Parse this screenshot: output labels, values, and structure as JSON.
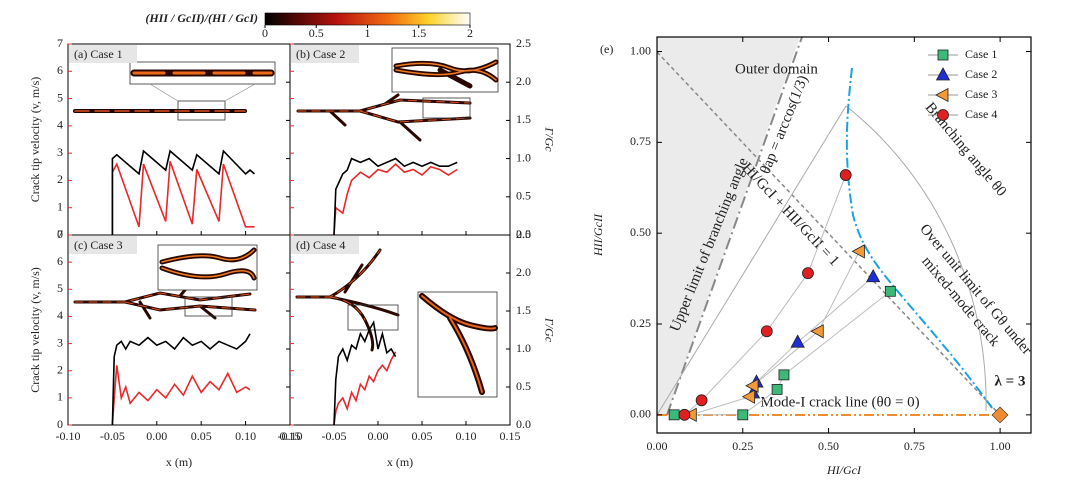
{
  "colorbar": {
    "label": "(HII / GcII)/(HI / GcI)",
    "lim": [
      0,
      2
    ],
    "ticks": [
      0,
      0.5,
      1,
      1.5,
      2
    ]
  },
  "chart_data": [
    {
      "type": "line",
      "label": "(a) Case 1",
      "ylabel": "Crack tip velocity (v, m/s)",
      "xlim": [
        -0.1,
        0.15
      ],
      "xticks": [
        -0.1,
        -0.05,
        0,
        0.05,
        0.1,
        0.15
      ],
      "ylim": [
        0,
        7
      ],
      "yticks": [
        0,
        1,
        2,
        3,
        4,
        5,
        6,
        7
      ],
      "y2lim": [
        0,
        2.5
      ],
      "y2ticks": [
        0,
        0.5,
        1,
        1.5,
        2,
        2.5
      ],
      "x": [
        -0.05,
        -0.05,
        -0.045,
        -0.02,
        -0.015,
        0.01,
        0.015,
        0.04,
        0.045,
        0.07,
        0.075,
        0.1,
        0.105,
        0.11
      ],
      "series": [
        {
          "color": "#e8282a",
          "axis": "y",
          "values": [
            0,
            2.3,
            2.6,
            0.3,
            2.6,
            0.5,
            2.7,
            0.4,
            2.4,
            0.5,
            2.6,
            0.3,
            0.3,
            0.3
          ]
        },
        {
          "color": "#000000",
          "axis": "y2",
          "values": [
            0,
            1.0,
            1.05,
            0.8,
            1.1,
            0.85,
            1.1,
            0.85,
            1.05,
            0.8,
            1.1,
            0.8,
            0.85,
            0.8
          ]
        }
      ]
    },
    {
      "type": "line",
      "label": "(b) Case 2",
      "y2label": "Γ/Gc",
      "xlim": [
        -0.1,
        0.15
      ],
      "xticks": [
        -0.1,
        -0.05,
        0,
        0.05,
        0.1,
        0.15
      ],
      "ylim": [
        0,
        7
      ],
      "yticks": [
        0,
        1,
        2,
        3,
        4,
        5,
        6,
        7
      ],
      "y2lim": [
        0,
        2.5
      ],
      "y2ticks": [
        {
          "value": 0,
          "label": "0.0"
        },
        0.5,
        {
          "value": 1,
          "label": "1.0"
        },
        1.5,
        {
          "value": 2,
          "label": "2.0"
        },
        2.5
      ],
      "x": [
        -0.05,
        -0.048,
        -0.04,
        -0.035,
        -0.03,
        -0.02,
        -0.01,
        0,
        0.01,
        0.02,
        0.03,
        0.04,
        0.05,
        0.06,
        0.07,
        0.08,
        0.09
      ],
      "series": [
        {
          "color": "#e8282a",
          "axis": "y",
          "values": [
            0,
            1.0,
            0.8,
            1.5,
            2.0,
            2.3,
            2.1,
            2.4,
            2.3,
            2.6,
            2.3,
            2.4,
            2.2,
            2.5,
            2.4,
            2.2,
            2.4
          ]
        },
        {
          "color": "#000000",
          "axis": "y2",
          "values": [
            0,
            0.6,
            0.8,
            0.85,
            1.0,
            0.95,
            1.0,
            0.9,
            0.95,
            1.0,
            0.9,
            0.95,
            0.9,
            0.95,
            0.9,
            0.9,
            0.95
          ]
        }
      ]
    },
    {
      "type": "line",
      "label": "(c) Case 3",
      "ylabel": "Crack tip velocity (v, m/s)",
      "xlabel": "x (m)",
      "xlim": [
        -0.1,
        0.15
      ],
      "xticks": [
        {
          "value": -0.1,
          "label": "-0.10"
        },
        {
          "value": -0.05,
          "label": "-0.05"
        },
        {
          "value": 0,
          "label": "0.00"
        },
        {
          "value": 0.05,
          "label": "0.05"
        },
        {
          "value": 0.1,
          "label": "0.10"
        },
        {
          "value": 0.15,
          "label": "0.15"
        }
      ],
      "ylim": [
        0,
        7
      ],
      "yticks": [
        0,
        1,
        2,
        3,
        4,
        5,
        6,
        7
      ],
      "y2lim": [
        0,
        2.5
      ],
      "y2ticks": [
        0,
        0.5,
        1,
        1.5,
        2,
        2.5
      ],
      "x": [
        -0.05,
        -0.048,
        -0.045,
        -0.04,
        -0.035,
        -0.03,
        -0.02,
        -0.01,
        0,
        0.01,
        0.02,
        0.03,
        0.04,
        0.05,
        0.06,
        0.07,
        0.08,
        0.09,
        0.1,
        0.105
      ],
      "series": [
        {
          "color": "#e8282a",
          "axis": "y",
          "values": [
            0,
            1.0,
            2.2,
            1.0,
            1.4,
            0.8,
            1.2,
            0.9,
            1.3,
            1.0,
            1.5,
            1.1,
            1.8,
            1.2,
            1.6,
            1.3,
            1.9,
            1.2,
            1.4,
            1.3
          ]
        },
        {
          "color": "#000000",
          "axis": "y2",
          "values": [
            0,
            0.9,
            1.05,
            1.1,
            1.0,
            1.1,
            1.05,
            1.15,
            1.05,
            1.1,
            1.0,
            1.15,
            1.05,
            1.1,
            1.0,
            1.1,
            1.05,
            1.0,
            1.1,
            1.2
          ]
        }
      ]
    },
    {
      "type": "line",
      "label": "(d) Case 4",
      "y2label": "Γ/Gc",
      "xlabel": "x (m)",
      "xlim": [
        -0.1,
        0.15
      ],
      "xticks": [
        {
          "value": -0.1,
          "label": "-0.10"
        },
        {
          "value": -0.05,
          "label": "-0.05"
        },
        {
          "value": 0,
          "label": "0.00"
        },
        {
          "value": 0.05,
          "label": "0.05"
        },
        {
          "value": 0.1,
          "label": "0.10"
        },
        {
          "value": 0.15,
          "label": "0.15"
        }
      ],
      "ylim": [
        0,
        7
      ],
      "yticks": [
        0,
        1,
        2,
        3,
        4,
        5,
        6,
        7
      ],
      "y2lim": [
        0,
        2.5
      ],
      "y2ticks": [
        {
          "value": 0,
          "label": "0.0"
        },
        0.5,
        {
          "value": 1,
          "label": "1.0"
        },
        1.5,
        {
          "value": 2,
          "label": "2.0"
        },
        2.5
      ],
      "x": [
        -0.05,
        -0.048,
        -0.045,
        -0.04,
        -0.035,
        -0.03,
        -0.025,
        -0.02,
        -0.015,
        -0.01,
        -0.005,
        0,
        0.005,
        0.01,
        0.015,
        0.02
      ],
      "series": [
        {
          "color": "#e8282a",
          "axis": "y",
          "values": [
            0,
            0.5,
            0.8,
            1.0,
            0.6,
            1.2,
            0.9,
            1.5,
            1.3,
            1.8,
            1.6,
            2.0,
            2.2,
            2.0,
            2.4,
            2.7
          ]
        },
        {
          "color": "#000000",
          "axis": "y2",
          "values": [
            0,
            0.6,
            0.9,
            1.0,
            0.85,
            1.05,
            1.0,
            1.2,
            1.1,
            1.25,
            1.35,
            1.0,
            1.2,
            0.95,
            1.0,
            0.9
          ]
        }
      ]
    },
    {
      "type": "scatter",
      "label": "(e)",
      "xlabel": "HI/GcI",
      "ylabel": "HII/GcII",
      "xlim": [
        0,
        1.09
      ],
      "ylim": [
        -0.05,
        1.04
      ],
      "xticks": [
        {
          "value": 0,
          "label": "0.00"
        },
        {
          "value": 0.25,
          "label": "0.25"
        },
        {
          "value": 0.5,
          "label": "0.50"
        },
        {
          "value": 0.75,
          "label": "0.75"
        },
        {
          "value": 1,
          "label": "1.00"
        }
      ],
      "yticks": [
        {
          "value": 0,
          "label": "0.00"
        },
        {
          "value": 0.25,
          "label": "0.25"
        },
        {
          "value": 0.5,
          "label": "0.50"
        },
        {
          "value": 0.75,
          "label": "0.75"
        },
        {
          "value": 1,
          "label": "1.00"
        }
      ],
      "series": [
        {
          "name": "Case 1",
          "color": "#3cb878",
          "marker": "square",
          "x": [
            0.05,
            0.25,
            0.35,
            0.37,
            0.68
          ],
          "y": [
            0,
            0,
            0.07,
            0.11,
            0.34
          ]
        },
        {
          "name": "Case 2",
          "color": "#1f2fd6",
          "marker": "triangle",
          "x": [
            0.28,
            0.29,
            0.41,
            0.63
          ],
          "y": [
            0.06,
            0.09,
            0.2,
            0.38
          ]
        },
        {
          "name": "Case 3",
          "color": "#f39a36",
          "marker": "tri-left",
          "x": [
            0.1,
            0.27,
            0.28,
            0.47,
            0.59
          ],
          "y": [
            0,
            0.05,
            0.08,
            0.23,
            0.45
          ]
        },
        {
          "name": "Case 4",
          "color": "#e02020",
          "marker": "circle",
          "x": [
            0.08,
            0.13,
            0.32,
            0.44,
            0.55
          ],
          "y": [
            0,
            0.04,
            0.23,
            0.39,
            0.66
          ]
        }
      ],
      "annotations": [
        "Outer domain",
        "Upper limit of branching angle",
        "θap = arccos(1/3)",
        "HI/GcI + HII/GcII = 1",
        "Branching angle θ0",
        "Over unit limit of Gθ under",
        "mixed-mode crack",
        "λ = 3",
        "Mode-I crack line (θ0 = 0)"
      ]
    }
  ]
}
